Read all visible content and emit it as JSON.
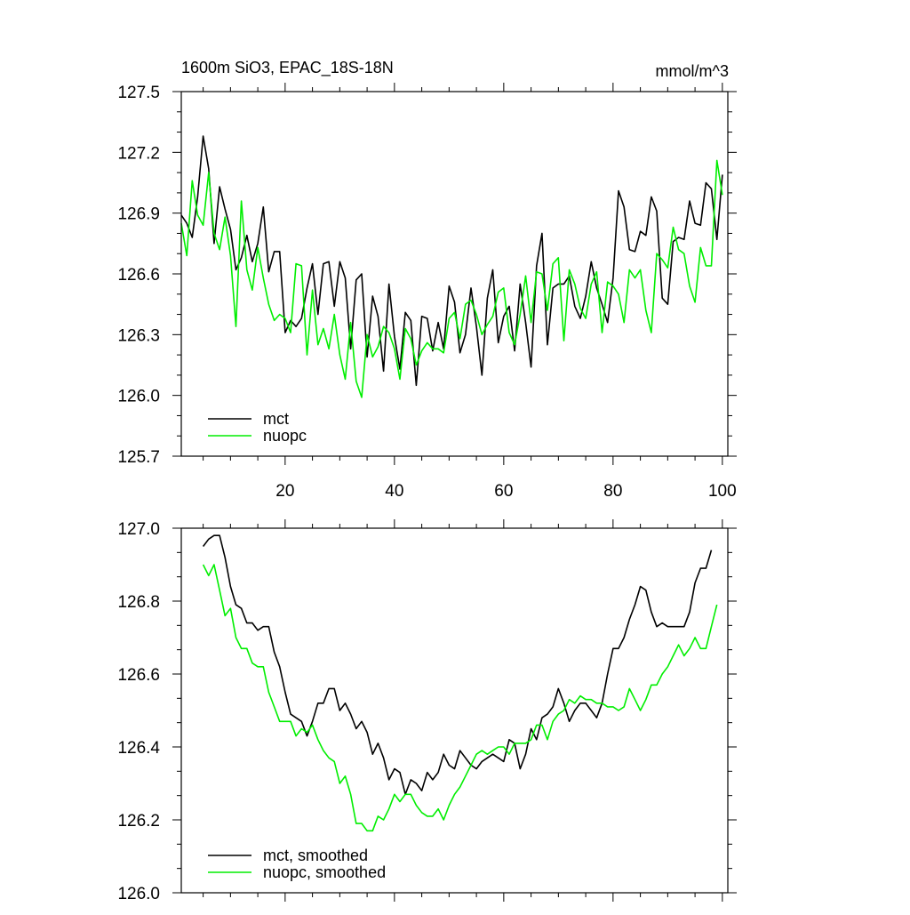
{
  "colors": {
    "mct": "#000000",
    "nuopc": "#00ee00"
  },
  "chart_data": [
    {
      "type": "line",
      "title": "1600m SiO3, EPAC_18S-18N",
      "units": "mmol/m^3",
      "xlabel": "",
      "ylabel": "",
      "xlim": [
        1,
        101
      ],
      "ylim": [
        125.7,
        127.5
      ],
      "x_ticks": [
        20,
        40,
        60,
        80,
        100
      ],
      "x_tick_labels": [
        "20",
        "40",
        "60",
        "80",
        "100"
      ],
      "y_ticks": [
        125.7,
        126.0,
        126.3,
        126.6,
        126.9,
        127.2,
        127.5
      ],
      "y_tick_labels": [
        "125.7",
        "126.0",
        "126.3",
        "126.6",
        "126.9",
        "127.2",
        "127.5"
      ],
      "legend_position": "bottom-left",
      "series": [
        {
          "name": "mct",
          "label": "mct",
          "color": "#000000",
          "values": [
            126.89,
            126.85,
            126.78,
            126.98,
            127.28,
            127.12,
            126.75,
            127.03,
            126.92,
            126.82,
            126.62,
            126.68,
            126.79,
            126.66,
            126.75,
            126.93,
            126.61,
            126.71,
            126.71,
            126.31,
            126.37,
            126.34,
            126.38,
            126.53,
            126.65,
            126.4,
            126.65,
            126.66,
            126.44,
            126.66,
            126.58,
            126.23,
            126.57,
            126.6,
            126.19,
            126.49,
            126.39,
            126.12,
            126.55,
            126.29,
            126.13,
            126.41,
            126.37,
            126.05,
            126.39,
            126.38,
            126.22,
            126.36,
            126.23,
            126.54,
            126.46,
            126.21,
            126.3,
            126.53,
            126.34,
            126.1,
            126.48,
            126.62,
            126.26,
            126.39,
            126.44,
            126.22,
            126.55,
            126.36,
            126.14,
            126.64,
            126.8,
            126.25,
            126.53,
            126.55,
            126.55,
            126.59,
            126.44,
            126.38,
            126.49,
            126.66,
            126.53,
            126.45,
            126.36,
            126.58,
            127.01,
            126.93,
            126.72,
            126.71,
            126.81,
            126.79,
            126.98,
            126.91,
            126.48,
            126.45,
            126.76,
            126.78,
            126.77,
            126.96,
            126.85,
            126.84,
            127.05,
            127.02,
            126.77,
            127.09
          ]
        },
        {
          "name": "nuopc",
          "label": "nuopc",
          "color": "#00ee00",
          "values": [
            126.85,
            126.69,
            127.06,
            126.89,
            126.84,
            127.1,
            126.8,
            126.72,
            126.88,
            126.69,
            126.34,
            126.96,
            126.62,
            126.52,
            126.73,
            126.58,
            126.45,
            126.37,
            126.4,
            126.38,
            126.31,
            126.65,
            126.64,
            126.2,
            126.52,
            126.25,
            126.33,
            126.23,
            126.4,
            126.2,
            126.08,
            126.36,
            126.07,
            125.99,
            126.3,
            126.19,
            126.24,
            126.34,
            126.31,
            126.23,
            126.08,
            126.33,
            126.28,
            126.15,
            126.22,
            126.26,
            126.23,
            126.23,
            126.21,
            126.38,
            126.41,
            126.28,
            126.45,
            126.47,
            126.4,
            126.3,
            126.35,
            126.39,
            126.51,
            126.53,
            126.31,
            126.25,
            126.4,
            126.59,
            126.36,
            126.61,
            126.6,
            126.42,
            126.65,
            126.68,
            126.27,
            126.62,
            126.55,
            126.43,
            126.38,
            126.55,
            126.61,
            126.31,
            126.56,
            126.54,
            126.5,
            126.36,
            126.62,
            126.58,
            126.62,
            126.42,
            126.31,
            126.7,
            126.67,
            126.63,
            126.83,
            126.72,
            126.7,
            126.54,
            126.46,
            126.73,
            126.64,
            126.64,
            127.16,
            126.99
          ]
        }
      ]
    },
    {
      "type": "line",
      "title": "",
      "xlabel": "",
      "ylabel": "",
      "xlim": [
        1,
        101
      ],
      "ylim": [
        126.0,
        127.0
      ],
      "x_ticks": [
        20,
        40,
        60,
        80,
        100
      ],
      "y_ticks": [
        126.0,
        126.2,
        126.4,
        126.6,
        126.8,
        127.0
      ],
      "y_tick_labels": [
        "126.0",
        "126.2",
        "126.4",
        "126.6",
        "126.8",
        "127.0"
      ],
      "legend_position": "bottom-left",
      "series": [
        {
          "name": "mct, smoothed",
          "label": "mct, smoothed",
          "color": "#000000",
          "x_start": 5,
          "values": [
            126.95,
            126.97,
            126.98,
            126.98,
            126.92,
            126.84,
            126.79,
            126.78,
            126.74,
            126.74,
            126.72,
            126.73,
            126.73,
            126.66,
            126.62,
            126.55,
            126.49,
            126.48,
            126.47,
            126.43,
            126.47,
            126.52,
            126.52,
            126.56,
            126.56,
            126.5,
            126.52,
            126.49,
            126.45,
            126.47,
            126.44,
            126.38,
            126.41,
            126.37,
            126.31,
            126.34,
            126.33,
            126.27,
            126.31,
            126.3,
            126.28,
            126.33,
            126.31,
            126.33,
            126.38,
            126.35,
            126.34,
            126.39,
            126.37,
            126.35,
            126.34,
            126.36,
            126.37,
            126.38,
            126.37,
            126.36,
            126.42,
            126.41,
            126.34,
            126.38,
            126.45,
            126.42,
            126.48,
            126.49,
            126.51,
            126.56,
            126.52,
            126.47,
            126.5,
            126.52,
            126.52,
            126.5,
            126.48,
            126.52,
            126.6,
            126.67,
            126.67,
            126.7,
            126.75,
            126.79,
            126.84,
            126.83,
            126.77,
            126.73,
            126.74,
            126.73,
            126.73,
            126.73,
            126.73,
            126.77,
            126.85,
            126.89,
            126.89,
            126.94
          ]
        },
        {
          "name": "nuopc, smoothed",
          "label": "nuopc, smoothed",
          "color": "#00ee00",
          "x_start": 5,
          "values": [
            126.9,
            126.87,
            126.9,
            126.83,
            126.76,
            126.78,
            126.7,
            126.67,
            126.67,
            126.63,
            126.62,
            126.62,
            126.55,
            126.51,
            126.47,
            126.47,
            126.47,
            126.43,
            126.45,
            126.44,
            126.46,
            126.42,
            126.39,
            126.37,
            126.36,
            126.3,
            126.32,
            126.27,
            126.19,
            126.19,
            126.17,
            126.17,
            126.21,
            126.2,
            126.23,
            126.27,
            126.25,
            126.27,
            126.27,
            126.24,
            126.22,
            126.21,
            126.21,
            126.23,
            126.2,
            126.24,
            126.27,
            126.29,
            126.32,
            126.35,
            126.38,
            126.39,
            126.38,
            126.39,
            126.4,
            126.4,
            126.38,
            126.41,
            126.41,
            126.41,
            126.42,
            126.46,
            126.46,
            126.42,
            126.47,
            126.49,
            126.5,
            126.53,
            126.52,
            126.54,
            126.53,
            126.53,
            126.52,
            126.52,
            126.51,
            126.51,
            126.5,
            126.51,
            126.56,
            126.53,
            126.5,
            126.53,
            126.57,
            126.57,
            126.6,
            126.62,
            126.65,
            126.68,
            126.65,
            126.67,
            126.7,
            126.67,
            126.67,
            126.73,
            126.79
          ]
        }
      ]
    }
  ]
}
